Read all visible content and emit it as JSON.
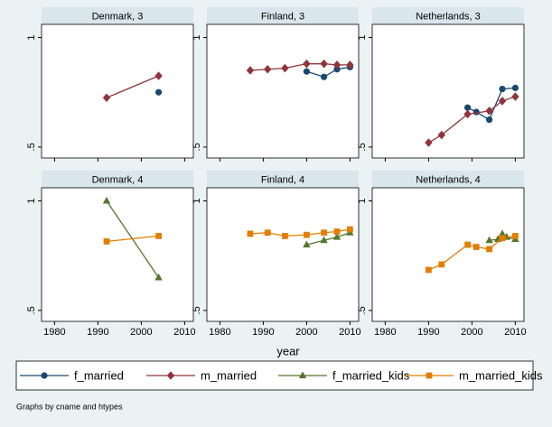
{
  "chart_data": [
    {
      "type": "line",
      "title": "Denmark, 3",
      "xlim": [
        1977,
        2012
      ],
      "xticks": [
        1980,
        1990,
        2000,
        2010
      ],
      "ylim": [
        0.45,
        1.06
      ],
      "yticks": [
        {
          "value": 0.5,
          "label": ".5"
        },
        1
      ],
      "grid": false,
      "series": [
        {
          "name": "f_married",
          "color": "#1a476f",
          "marker": "circle",
          "x": [
            2004
          ],
          "values": [
            0.75
          ]
        },
        {
          "name": "m_married",
          "color": "#90353b",
          "marker": "diamond",
          "x": [
            1992,
            2004
          ],
          "values": [
            0.725,
            0.825
          ]
        },
        {
          "name": "f_married_kids",
          "color": "#55752f",
          "marker": "triangle",
          "x": [],
          "values": []
        },
        {
          "name": "m_married_kids",
          "color": "#e37e00",
          "marker": "square",
          "x": [],
          "values": []
        }
      ]
    },
    {
      "type": "line",
      "title": "Finland, 3",
      "xlim": [
        1977,
        2012
      ],
      "xticks": [
        1980,
        1990,
        2000,
        2010
      ],
      "ylim": [
        0.45,
        1.06
      ],
      "yticks": [
        {
          "value": 0.5,
          "label": ".5"
        },
        1
      ],
      "grid": false,
      "series": [
        {
          "name": "f_married",
          "color": "#1a476f",
          "marker": "circle",
          "x": [
            2000,
            2004,
            2007,
            2010
          ],
          "values": [
            0.845,
            0.82,
            0.855,
            0.865
          ]
        },
        {
          "name": "m_married",
          "color": "#90353b",
          "marker": "diamond",
          "x": [
            1987,
            1991,
            1995,
            2000,
            2004,
            2007,
            2010
          ],
          "values": [
            0.85,
            0.855,
            0.86,
            0.88,
            0.88,
            0.875,
            0.875
          ]
        },
        {
          "name": "f_married_kids",
          "color": "#55752f",
          "marker": "triangle",
          "x": [],
          "values": []
        },
        {
          "name": "m_married_kids",
          "color": "#e37e00",
          "marker": "square",
          "x": [],
          "values": []
        }
      ]
    },
    {
      "type": "line",
      "title": "Netherlands, 3",
      "xlim": [
        1977,
        2012
      ],
      "xticks": [
        1980,
        1990,
        2000,
        2010
      ],
      "ylim": [
        0.45,
        1.06
      ],
      "yticks": [
        {
          "value": 0.5,
          "label": ".5"
        },
        1
      ],
      "grid": false,
      "series": [
        {
          "name": "f_married",
          "color": "#1a476f",
          "marker": "circle",
          "x": [
            1999,
            2001,
            2004,
            2007,
            2010
          ],
          "values": [
            0.68,
            0.66,
            0.625,
            0.765,
            0.77
          ]
        },
        {
          "name": "m_married",
          "color": "#90353b",
          "marker": "diamond",
          "x": [
            1990,
            1993,
            1999,
            2004,
            2007,
            2010
          ],
          "values": [
            0.52,
            0.555,
            0.65,
            0.665,
            0.71,
            0.73
          ]
        },
        {
          "name": "f_married_kids",
          "color": "#55752f",
          "marker": "triangle",
          "x": [],
          "values": []
        },
        {
          "name": "m_married_kids",
          "color": "#e37e00",
          "marker": "square",
          "x": [],
          "values": []
        }
      ]
    },
    {
      "type": "line",
      "title": "Denmark, 4",
      "xlim": [
        1977,
        2012
      ],
      "xticks": [
        1980,
        1990,
        2000,
        2010
      ],
      "ylim": [
        0.45,
        1.06
      ],
      "yticks": [
        {
          "value": 0.5,
          "label": ".5"
        },
        1
      ],
      "grid": false,
      "series": [
        {
          "name": "f_married",
          "color": "#1a476f",
          "marker": "circle",
          "x": [],
          "values": []
        },
        {
          "name": "m_married",
          "color": "#90353b",
          "marker": "diamond",
          "x": [],
          "values": []
        },
        {
          "name": "f_married_kids",
          "color": "#55752f",
          "marker": "triangle",
          "x": [
            1992,
            2004
          ],
          "values": [
            1.0,
            0.65
          ]
        },
        {
          "name": "m_married_kids",
          "color": "#e37e00",
          "marker": "square",
          "x": [
            1992,
            2004
          ],
          "values": [
            0.815,
            0.84
          ]
        }
      ]
    },
    {
      "type": "line",
      "title": "Finland, 4",
      "xlim": [
        1977,
        2012
      ],
      "xticks": [
        1980,
        1990,
        2000,
        2010
      ],
      "ylim": [
        0.45,
        1.06
      ],
      "yticks": [
        {
          "value": 0.5,
          "label": ".5"
        },
        1
      ],
      "grid": false,
      "series": [
        {
          "name": "f_married",
          "color": "#1a476f",
          "marker": "circle",
          "x": [],
          "values": []
        },
        {
          "name": "m_married",
          "color": "#90353b",
          "marker": "diamond",
          "x": [],
          "values": []
        },
        {
          "name": "f_married_kids",
          "color": "#55752f",
          "marker": "triangle",
          "x": [
            2000,
            2004,
            2007,
            2010
          ],
          "values": [
            0.8,
            0.82,
            0.835,
            0.855
          ]
        },
        {
          "name": "m_married_kids",
          "color": "#e37e00",
          "marker": "square",
          "x": [
            1987,
            1991,
            1995,
            2000,
            2004,
            2007,
            2010
          ],
          "values": [
            0.85,
            0.855,
            0.84,
            0.845,
            0.855,
            0.86,
            0.87
          ]
        }
      ]
    },
    {
      "type": "line",
      "title": "Netherlands, 4",
      "xlim": [
        1977,
        2012
      ],
      "xticks": [
        1980,
        1990,
        2000,
        2010
      ],
      "ylim": [
        0.45,
        1.06
      ],
      "yticks": [
        {
          "value": 0.5,
          "label": ".5"
        },
        1
      ],
      "grid": false,
      "series": [
        {
          "name": "f_married",
          "color": "#1a476f",
          "marker": "circle",
          "x": [],
          "values": []
        },
        {
          "name": "m_married",
          "color": "#90353b",
          "marker": "diamond",
          "x": [],
          "values": []
        },
        {
          "name": "f_married_kids",
          "color": "#55752f",
          "marker": "triangle",
          "x": [
            2004,
            2006,
            2007,
            2008,
            2010
          ],
          "values": [
            0.82,
            0.825,
            0.85,
            0.835,
            0.825
          ]
        },
        {
          "name": "m_married_kids",
          "color": "#e37e00",
          "marker": "square",
          "x": [
            1990,
            1993,
            1999,
            2001,
            2004,
            2007,
            2010
          ],
          "values": [
            0.685,
            0.71,
            0.8,
            0.79,
            0.78,
            0.83,
            0.84
          ]
        }
      ]
    }
  ],
  "x_label": "year",
  "note": "Graphs by cname and htypes"
}
